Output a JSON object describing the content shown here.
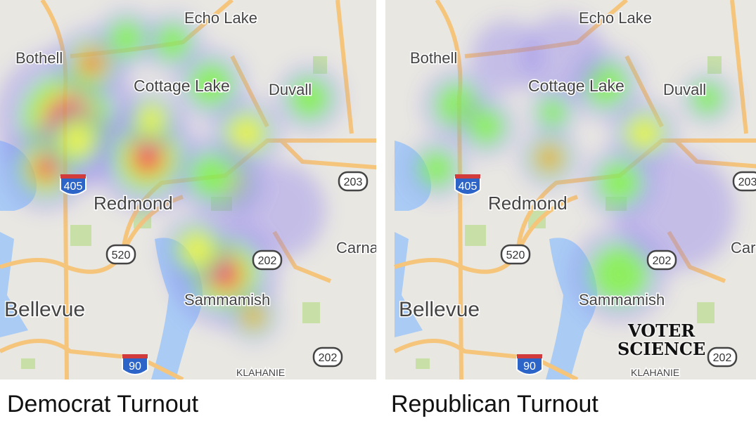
{
  "panels": [
    {
      "id": "democrat",
      "caption": "Democrat Turnout"
    },
    {
      "id": "republican",
      "caption": "Republican Turnout"
    }
  ],
  "map_labels": {
    "places": [
      "Echo Lake",
      "Bothell",
      "Cottage Lake",
      "Duvall",
      "Redmond",
      "Carna",
      "Bellevue",
      "Sammamish",
      "KLAHANIE"
    ],
    "highway_shields": [
      "405",
      "203",
      "520",
      "202",
      "202",
      "90"
    ]
  },
  "logo": {
    "line1": "VOTER",
    "line2": "SCIENCE"
  },
  "colors": {
    "water": "#a9cbf4",
    "land": "#e9e7e2",
    "road": "#f5c57c",
    "park": "#c8e0a8",
    "heat_low": "#8a7cf0",
    "heat_mid": "#7ef04a",
    "heat_high": "#f04a3a"
  }
}
